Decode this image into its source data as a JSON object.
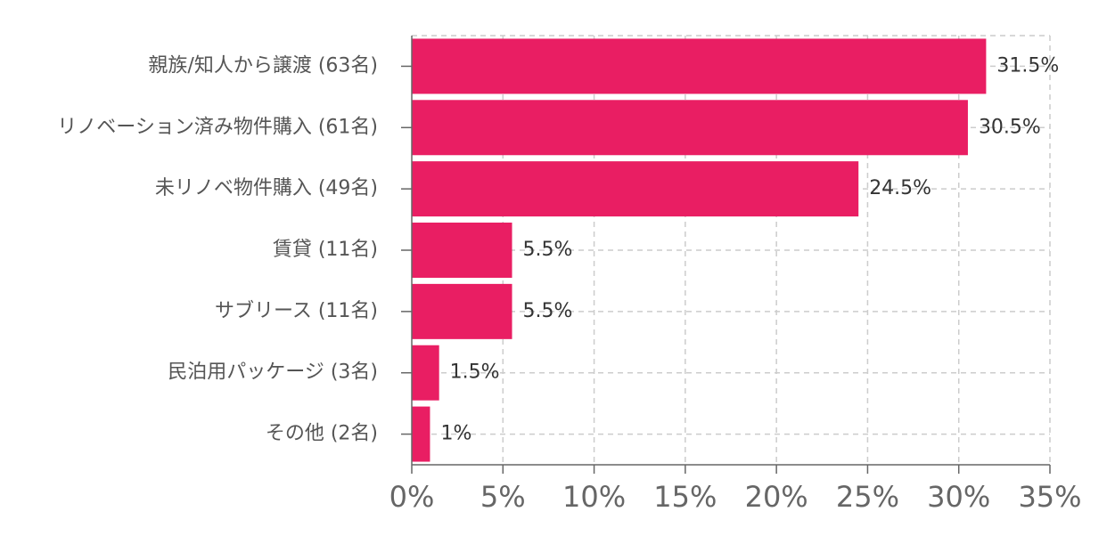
{
  "chart_data": {
    "type": "hbar",
    "categories": [
      "親族/知人から譲渡 (63名)",
      "リノベーション済み物件購入 (61名)",
      "未リノベ物件購入 (49名)",
      "賃貸 (11名)",
      "サブリース (11名)",
      "民泊用パッケージ (3名)",
      "その他 (2名)"
    ],
    "values": [
      31.5,
      30.5,
      24.5,
      5.5,
      5.5,
      1.5,
      1
    ],
    "value_labels": [
      "31.5%",
      "30.5%",
      "24.5%",
      "5.5%",
      "5.5%",
      "1.5%",
      "1%"
    ],
    "color": "#e91e63",
    "xlim": [
      0,
      35
    ],
    "xticks": [
      {
        "value": 0,
        "label": "0%"
      },
      {
        "value": 5,
        "label": "5%"
      },
      {
        "value": 10,
        "label": "10%"
      },
      {
        "value": 15,
        "label": "15%"
      },
      {
        "value": 20,
        "label": "20%"
      },
      {
        "value": 25,
        "label": "25%"
      },
      {
        "value": 30,
        "label": "30%"
      },
      {
        "value": 35,
        "label": "35%"
      }
    ],
    "grid": true
  }
}
